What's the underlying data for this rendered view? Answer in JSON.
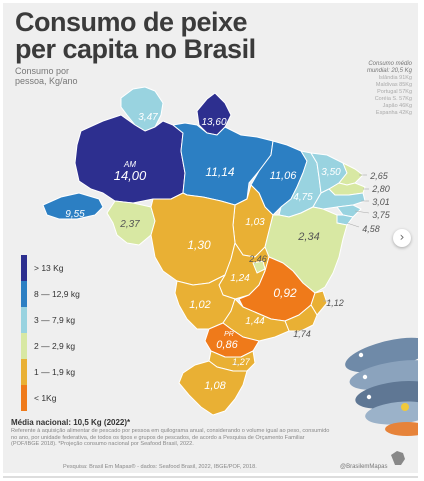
{
  "title": {
    "line1": "Consumo de peixe",
    "line2": "per capita no Brasil"
  },
  "subtitle": {
    "line1": "Consumo por",
    "line2": "pessoa, Kg/ano"
  },
  "world": {
    "title": "Consumo médio",
    "title2": "mundial: 20,5 Kg",
    "items": [
      "Islândia 91Kg",
      "Maldivas 85Kg",
      "Portugal 57Kg",
      "Coréia S. 57Kg",
      "Japão 46Kg",
      "Espanha 42Kg"
    ]
  },
  "map_values": {
    "rr": "3,47",
    "ap": "13,60",
    "am_abbr": "AM",
    "am": "14,00",
    "pa": "11,14",
    "ma": "11,06",
    "ce": "3,50",
    "pi": "4,75",
    "rn": "2,65",
    "pb": "2,80",
    "pe": "3,01",
    "al": "3,75",
    "se": "4,58",
    "ac": "9,55",
    "ro": "2,37",
    "to": "1,03",
    "mt": "1,30",
    "ba": "2,34",
    "df": "2,46",
    "go": "1,24",
    "mg": "0,92",
    "ms": "1,02",
    "es": "1,12",
    "rj": "1,74",
    "sp": "1,44",
    "pr_abbr": "PR",
    "pr": "0,86",
    "sc": "1,27",
    "rs": "1,08"
  },
  "legend": [
    {
      "label": "> 13 Kg",
      "color": "#2d2f8f"
    },
    {
      "label": "8 — 12,9 kg",
      "color": "#2c7fc3"
    },
    {
      "label": "3 — 7,9 kg",
      "color": "#99d3e0"
    },
    {
      "label": "2 — 2,9 kg",
      "color": "#d8e8a3"
    },
    {
      "label": "1 — 1,9 kg",
      "color": "#e9b034"
    },
    {
      "label": "< 1Kg",
      "color": "#ef7a1a"
    }
  ],
  "media": "Média nacional: 10,5 Kg (2022)*",
  "note": "Referente à aquisição alimentar de pescado por pessoa em quilograma anual, considerando o volume igual ao peso, consumido no ano, por unidade federativa, de todos os tipos e grupos de pescados, de acordo a Pesquisa de Orçamento Familiar (POF/IBGE 2018). *Projeção consumo nacional por Seafood Brasil, 2022.",
  "source": "Pesquisa: Brasil Em Mapas® - dados: Seafood Brasil, 2022, IBGE/POF, 2018.",
  "handle": "@BrasilemMapas",
  "nav_arrow": "›"
}
